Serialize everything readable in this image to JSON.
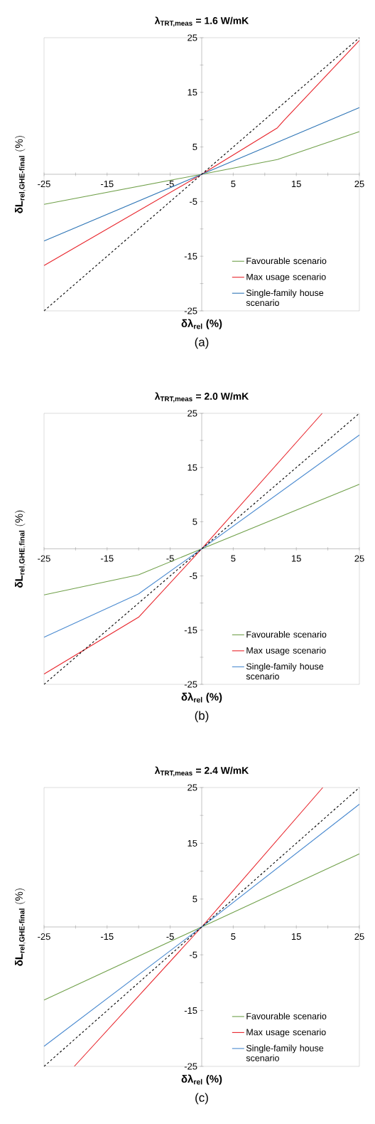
{
  "chart_data": [
    {
      "type": "line",
      "title": "λ$_{TRT,meas}$ = 1.6 W/mK",
      "xlabel": "δλ$_{rel}$ (%)",
      "ylabel": "\\mathbf{δL}_{\\mathbf{rel,GHE\\text{-}final}}\\ \\mathbf{(\\%)}",
      "annotations": [
        "(a)"
      ],
      "xlim": [
        -25,
        25
      ],
      "ylim": [
        -25,
        25
      ],
      "xticks": [
        -25,
        {
          "value": -20,
          "label": null
        },
        -15,
        {
          "value": -10,
          "label": null
        },
        -5,
        {
          "value": 0,
          "label": null
        },
        5,
        {
          "value": 10,
          "label": null
        },
        15,
        {
          "value": 20,
          "label": null
        },
        25
      ],
      "yticks": [
        -25,
        {
          "value": -20,
          "label": null
        },
        -15,
        {
          "value": -10,
          "label": null
        },
        -5,
        5,
        {
          "value": 10,
          "label": null
        },
        15,
        {
          "value": 20,
          "label": null
        },
        25
      ],
      "legend": "bottom right",
      "marker": "none",
      "series": [
        {
          "name": "Favourable scenario",
          "color": "#70a04a",
          "x": [
            -25,
            0,
            12,
            25
          ],
          "values": [
            -5.5,
            0,
            2.7,
            7.8
          ]
        },
        {
          "name": "Max usage scenario",
          "color": "#e8242b",
          "x": [
            -25,
            0,
            12,
            13,
            25
          ],
          "values": [
            -16.7,
            0,
            8.5,
            9.8,
            24.5
          ]
        },
        {
          "name": "Single-family house scenario",
          "color": "#2e75b6",
          "x": [
            -25,
            0,
            25
          ],
          "values": [
            -12.2,
            0,
            12.2
          ]
        },
        {
          "color": "#000000",
          "line_style": "dashed",
          "x": [
            -25,
            25
          ],
          "values": [
            -25,
            25
          ]
        }
      ]
    },
    {
      "type": "line",
      "title": "λ$_{TRT,meas}$ = 2.0 W/mK",
      "xlabel": "δλ$_{rel}$ (%)",
      "ylabel": "\\mathbf{δL}_{\\mathbf{rel,GHE,final}}\\ \\mathbf{(\\%)}",
      "annotations": [
        "(b)"
      ],
      "xlim": [
        -25,
        25
      ],
      "ylim": [
        -25,
        25
      ],
      "xticks": [
        -25,
        {
          "value": -20,
          "label": null
        },
        -15,
        {
          "value": -10,
          "label": null
        },
        -5,
        {
          "value": 0,
          "label": null
        },
        5,
        {
          "value": 10,
          "label": null
        },
        15,
        {
          "value": 20,
          "label": null
        },
        25
      ],
      "yticks": [
        -25,
        {
          "value": -20,
          "label": null
        },
        -15,
        {
          "value": -10,
          "label": null
        },
        -5,
        5,
        {
          "value": 10,
          "label": null
        },
        15,
        {
          "value": 20,
          "label": null
        },
        25
      ],
      "legend": "bottom right",
      "marker": "none",
      "series": [
        {
          "name": "Favourable scenario",
          "color": "#70a04a",
          "x": [
            -25,
            -10,
            0,
            25
          ],
          "values": [
            -8.5,
            -4.8,
            0,
            11.9
          ]
        },
        {
          "name": "Max usage scenario",
          "color": "#e8242b",
          "x": [
            -25,
            -10,
            0,
            19.1
          ],
          "values": [
            -23.1,
            -12.6,
            0,
            25
          ]
        },
        {
          "name": "Single-family house scenario",
          "color": "#4a8ad0",
          "x": [
            -25,
            -10,
            0,
            25
          ],
          "values": [
            -16.3,
            -8.3,
            0,
            21.0
          ]
        },
        {
          "color": "#000000",
          "line_style": "dashed",
          "x": [
            -25,
            25
          ],
          "values": [
            -25,
            25
          ]
        }
      ]
    },
    {
      "type": "line",
      "title": "λ$_{TRT,meas}$ = 2.4 W/mK",
      "xlabel": "δλ$_{rel}$ (%)",
      "ylabel": "\\mathbf{δL}_{\\mathbf{rel,GHE\\text{-}final}}\\ \\mathbf{(\\%)}",
      "annotations": [
        "(c)"
      ],
      "xlim": [
        -25,
        25
      ],
      "ylim": [
        -25,
        25
      ],
      "xticks": [
        -25,
        {
          "value": -20,
          "label": null
        },
        -15,
        {
          "value": -10,
          "label": null
        },
        -5,
        {
          "value": 0,
          "label": null
        },
        5,
        {
          "value": 10,
          "label": null
        },
        15,
        {
          "value": 20,
          "label": null
        },
        25
      ],
      "yticks": [
        -25,
        {
          "value": -20,
          "label": null
        },
        -15,
        {
          "value": -10,
          "label": null
        },
        -5,
        5,
        {
          "value": 10,
          "label": null
        },
        15,
        {
          "value": 20,
          "label": null
        },
        25
      ],
      "legend": "bottom right",
      "marker": "none",
      "series": [
        {
          "name": "Favourable scenario",
          "color": "#70a04a",
          "x": [
            -25,
            0,
            25
          ],
          "values": [
            -13.1,
            0,
            13.1
          ]
        },
        {
          "name": "Max usage scenario",
          "color": "#e8242b",
          "x": [
            -20.2,
            0,
            19.2
          ],
          "values": [
            -25,
            0,
            25
          ]
        },
        {
          "name": "Single-family house scenario",
          "color": "#4a8ad0",
          "x": [
            -25,
            0,
            25
          ],
          "values": [
            -21.4,
            0,
            22.0
          ]
        },
        {
          "color": "#000000",
          "line_style": "dashed",
          "x": [
            -25,
            25
          ],
          "values": [
            -25,
            25
          ]
        }
      ]
    }
  ]
}
